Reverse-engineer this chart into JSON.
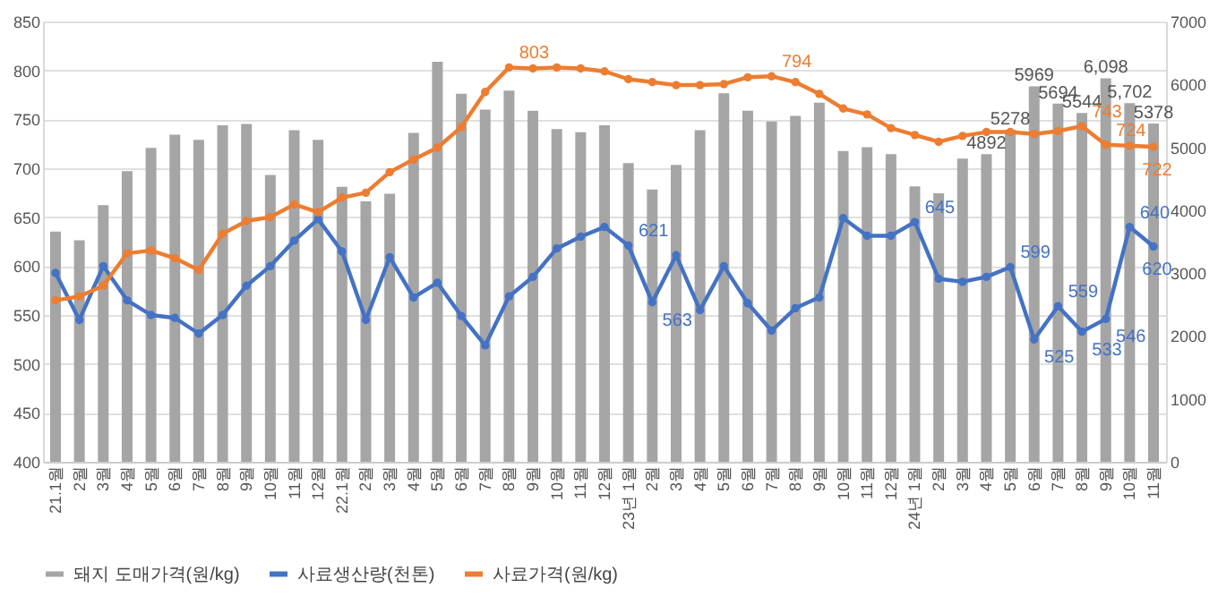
{
  "chart_data": {
    "type": "bar",
    "categories": [
      "21.1월",
      "2월",
      "3월",
      "4월",
      "5월",
      "6월",
      "7월",
      "8월",
      "9월",
      "10월",
      "11월",
      "12월",
      "22.1월",
      "2월",
      "3월",
      "4월",
      "5월",
      "6월",
      "7월",
      "8월",
      "9월",
      "10월",
      "11월",
      "12월",
      "23년 1월",
      "2월",
      "3월",
      "4월",
      "5월",
      "6월",
      "7월",
      "8월",
      "9월",
      "10월",
      "11월",
      "12월",
      "24년 1월",
      "2월",
      "3월",
      "4월",
      "5월",
      "6월",
      "7월",
      "8월",
      "9월",
      "10월",
      "11월"
    ],
    "series": [
      {
        "name": "돼지 도매가격(원/kg)",
        "axis": "y2",
        "color": "#a5a5a5",
        "values": [
          3660,
          3520,
          4080,
          4620,
          4990,
          5200,
          5120,
          5350,
          5370,
          4560,
          5270,
          5120,
          4370,
          4140,
          4260,
          5230,
          6360,
          5850,
          5600,
          5900,
          5580,
          5290,
          5240,
          5350,
          4750,
          4330,
          4720,
          5270,
          5860,
          5580,
          5410,
          5500,
          5710,
          4940,
          5000,
          4890,
          4380,
          4270,
          4820,
          4892,
          5278,
          5969,
          5694,
          5544,
          6098,
          5702,
          5378
        ],
        "value_labels": [
          null,
          null,
          null,
          null,
          null,
          null,
          null,
          null,
          null,
          null,
          null,
          null,
          null,
          null,
          null,
          null,
          null,
          null,
          null,
          null,
          null,
          null,
          null,
          null,
          null,
          null,
          null,
          null,
          null,
          null,
          null,
          null,
          null,
          null,
          null,
          null,
          null,
          null,
          null,
          "4892",
          "5278",
          "5969",
          "5694",
          "5544",
          "6,098",
          "5,702",
          "5378"
        ]
      },
      {
        "name": "사료생산량(천톤)",
        "type": "line",
        "color": "#4472c4",
        "values": [
          593,
          545,
          600,
          565,
          550,
          547,
          531,
          550,
          580,
          600,
          626,
          648,
          615,
          545,
          609,
          568,
          583,
          549,
          519,
          569,
          589,
          618,
          630,
          640,
          621,
          563,
          611,
          555,
          600,
          562,
          534,
          557,
          568,
          649,
          631,
          631,
          645,
          587,
          584,
          589,
          599,
          525,
          559,
          533,
          546,
          640,
          620
        ],
        "value_labels": [
          null,
          null,
          null,
          null,
          null,
          null,
          null,
          null,
          null,
          null,
          null,
          null,
          null,
          null,
          null,
          null,
          null,
          null,
          null,
          null,
          null,
          null,
          null,
          null,
          "621",
          "563",
          null,
          null,
          null,
          null,
          null,
          null,
          null,
          null,
          null,
          null,
          "645",
          null,
          null,
          null,
          "599",
          "525",
          "559",
          "533",
          "546",
          "640",
          "620"
        ]
      },
      {
        "name": "사료가격(원/kg)",
        "type": "line",
        "color": "#ed7d31",
        "values": [
          565,
          569,
          580,
          613,
          616,
          608,
          596,
          633,
          646,
          650,
          663,
          655,
          670,
          675,
          696,
          709,
          721,
          742,
          778,
          803,
          802,
          803,
          802,
          799,
          791,
          788,
          785,
          785,
          786,
          793,
          794,
          788,
          776,
          761,
          755,
          741,
          734,
          727,
          733,
          737,
          737,
          735,
          738,
          743,
          724,
          723,
          722
        ],
        "value_labels": [
          null,
          null,
          null,
          null,
          null,
          null,
          null,
          null,
          null,
          null,
          null,
          null,
          null,
          null,
          null,
          null,
          null,
          null,
          null,
          "803",
          null,
          null,
          null,
          null,
          null,
          null,
          null,
          null,
          null,
          null,
          "794",
          null,
          null,
          null,
          null,
          null,
          null,
          null,
          null,
          null,
          null,
          null,
          null,
          "743",
          "724",
          null,
          "722"
        ]
      }
    ],
    "ylim": [
      400,
      850
    ],
    "yticks": [
      400,
      450,
      500,
      550,
      600,
      650,
      700,
      750,
      800,
      850
    ],
    "y2lim": [
      0,
      7000
    ],
    "y2ticks": [
      0,
      1000,
      2000,
      3000,
      4000,
      5000,
      6000,
      7000
    ],
    "grid": "y",
    "legend": "bottom",
    "marker": "circle"
  }
}
